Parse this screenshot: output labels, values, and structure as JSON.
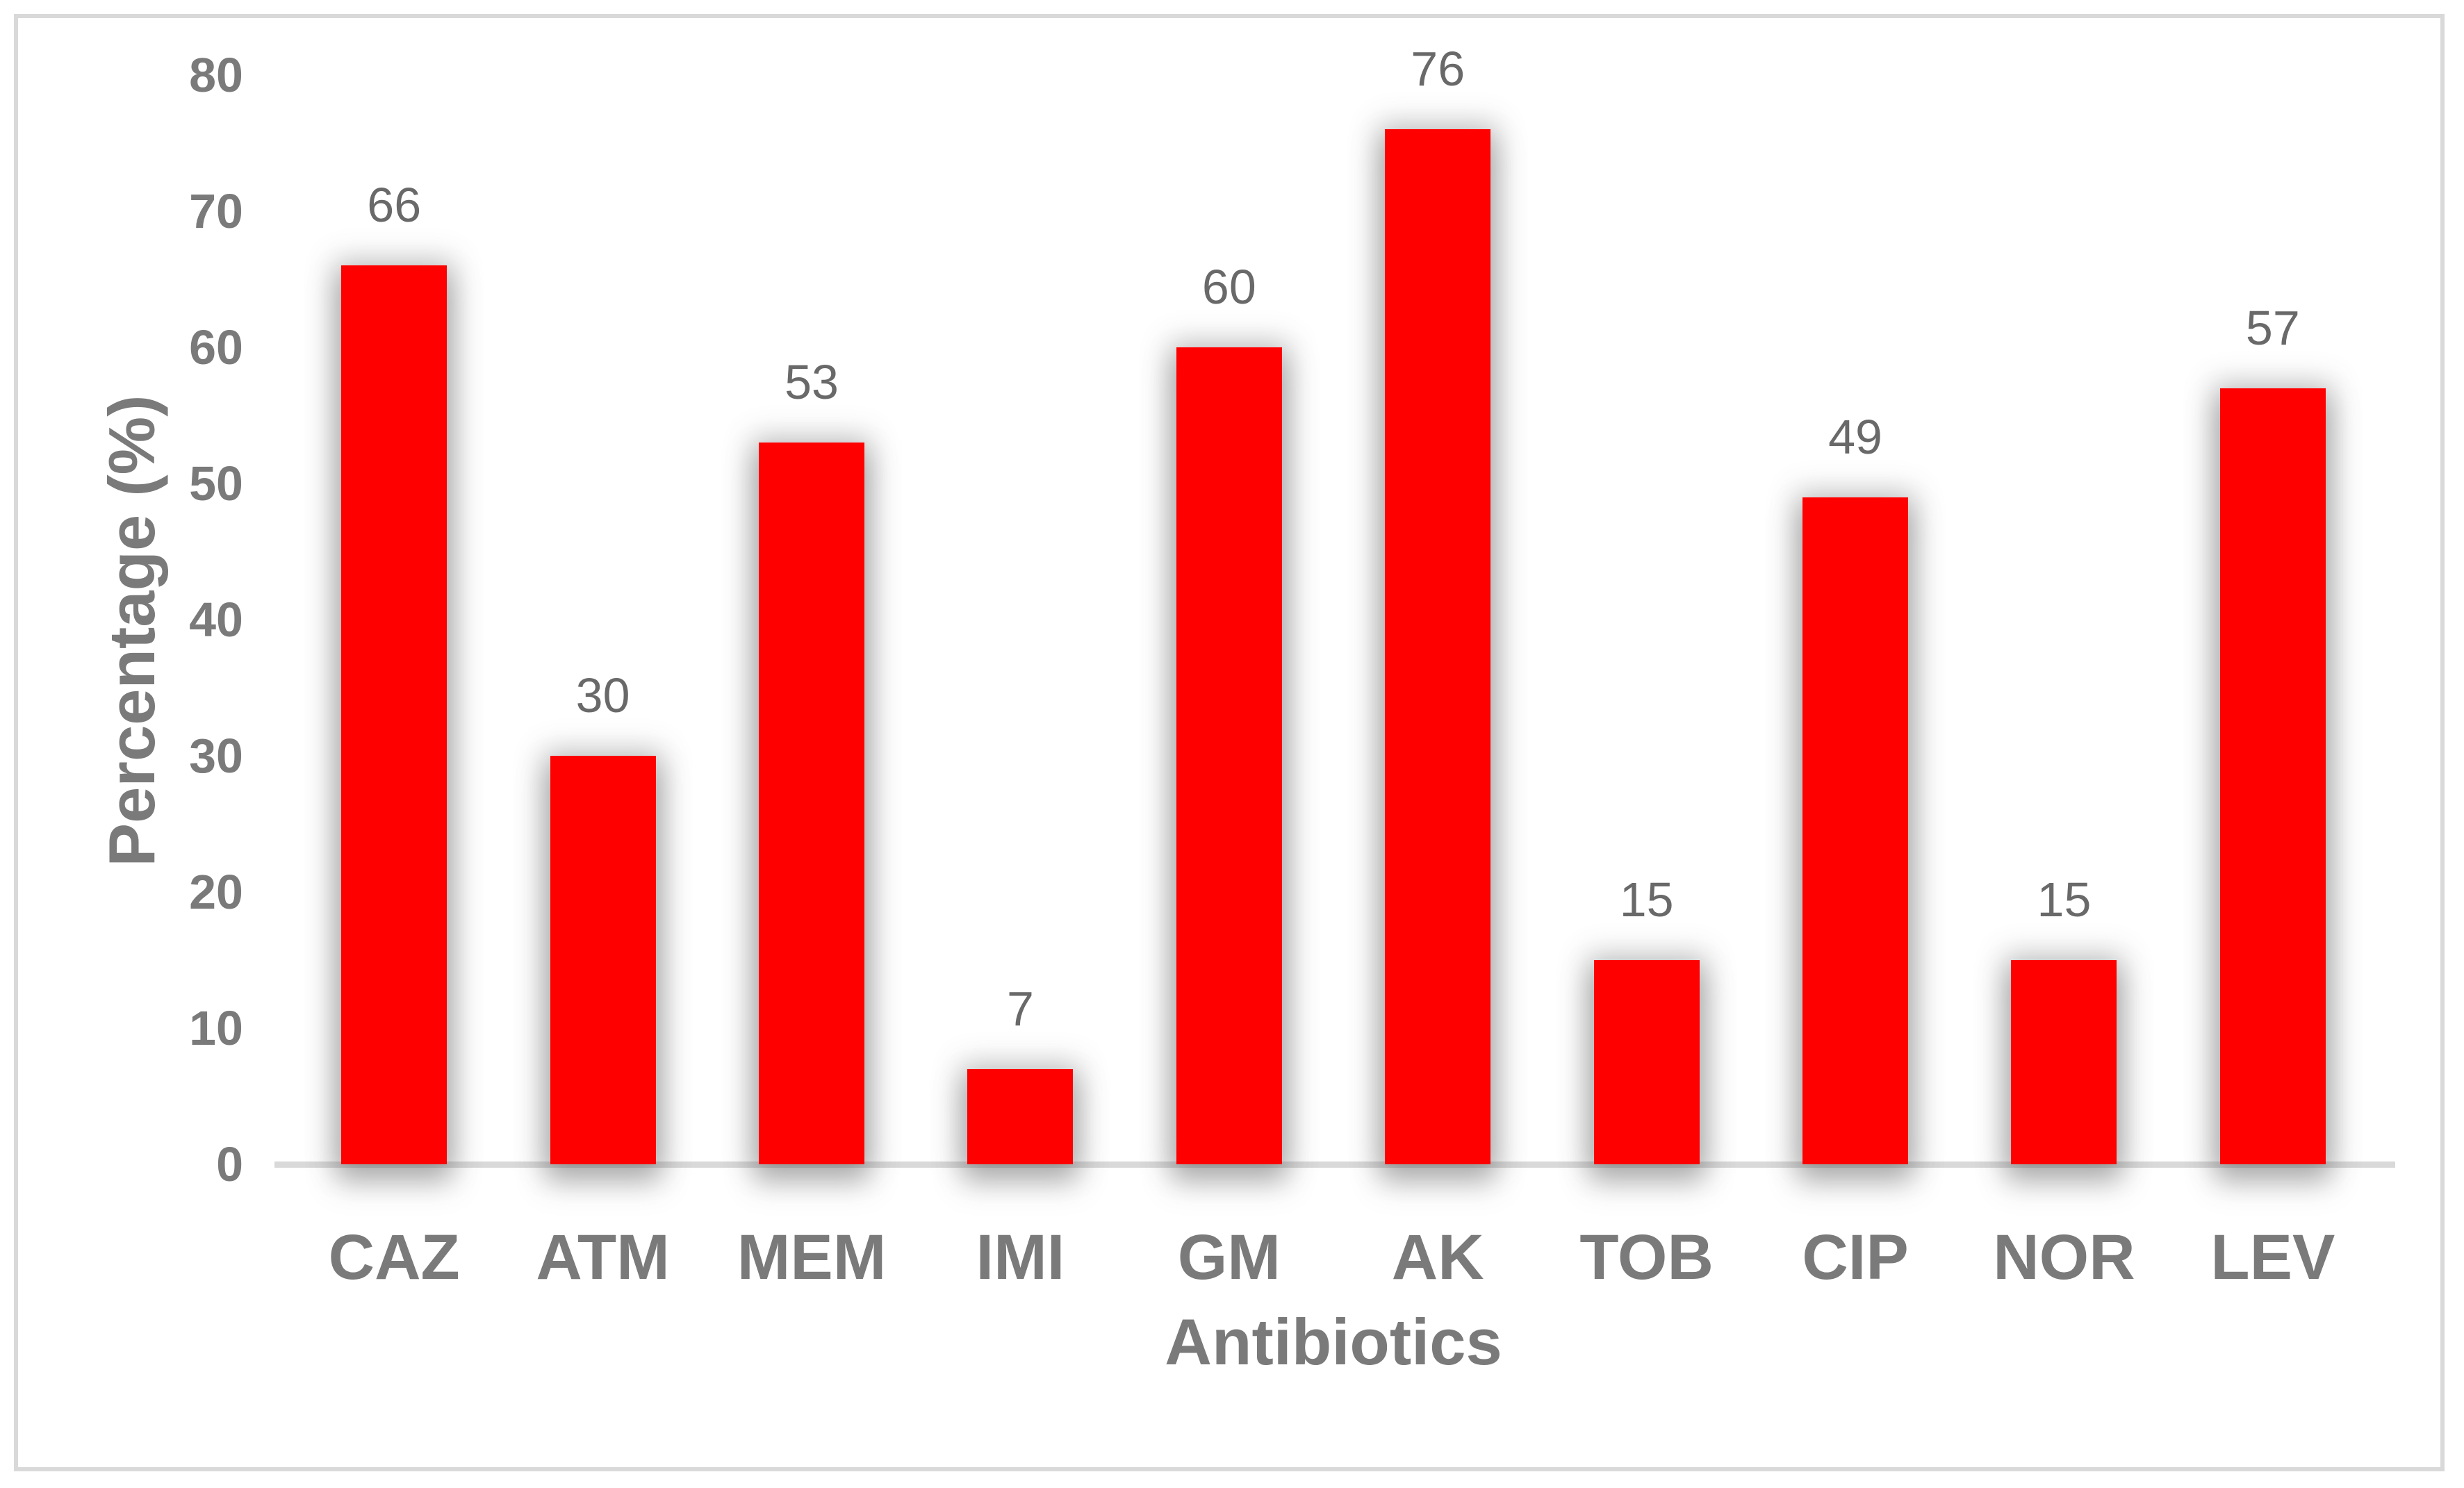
{
  "chart_data": {
    "type": "bar",
    "title": "",
    "categories": [
      "CAZ",
      "ATM",
      "MEM",
      "IMI",
      "GM",
      "AK",
      "TOB",
      "CIP",
      "NOR",
      "LEV"
    ],
    "values": [
      66,
      30,
      53,
      7,
      60,
      76,
      15,
      49,
      15,
      57
    ],
    "xlabel": "Antibiotics",
    "ylabel": "Percentage (%)",
    "ylim": [
      0,
      80
    ],
    "yticks": [
      0,
      10,
      20,
      30,
      40,
      50,
      60,
      70,
      80
    ],
    "grid": false,
    "legend": null,
    "data_labels_shown": true,
    "colors": {
      "bar": "#ff0000",
      "axis_text": "#7a7a7a",
      "data_label_text": "#696969",
      "baseline": "#d9d9d9",
      "frame_border": "#d9d9d9",
      "background": "#ffffff"
    }
  }
}
